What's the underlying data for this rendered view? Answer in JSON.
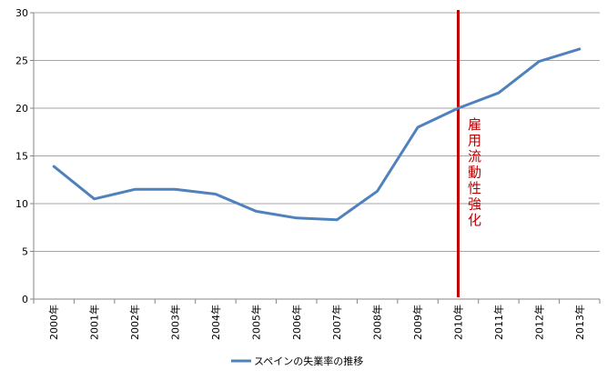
{
  "chart_data": {
    "type": "line",
    "title": "",
    "xlabel": "",
    "ylabel": "",
    "categories": [
      "2000年",
      "2001年",
      "2002年",
      "2003年",
      "2004年",
      "2005年",
      "2006年",
      "2007年",
      "2008年",
      "2009年",
      "2010年",
      "2011年",
      "2012年",
      "2013年"
    ],
    "series": [
      {
        "name": "スペインの失業率の推移",
        "values": [
          13.9,
          10.5,
          11.5,
          11.5,
          11.0,
          9.2,
          8.5,
          8.3,
          11.3,
          18.0,
          20.0,
          21.6,
          24.9,
          26.2
        ],
        "color": "#4f81bd"
      }
    ],
    "ylim": [
      0,
      30
    ],
    "yticks": [
      0,
      5,
      10,
      15,
      20,
      25,
      30
    ],
    "grid": true,
    "legend_position": "bottom",
    "annotation": {
      "text": "雇用流動性強化",
      "category": "2010年",
      "color": "#c00000"
    }
  },
  "colors": {
    "grid": "#a6a6a6",
    "axis": "#868686",
    "line": "#4f81bd",
    "annotation": "#c00000"
  }
}
